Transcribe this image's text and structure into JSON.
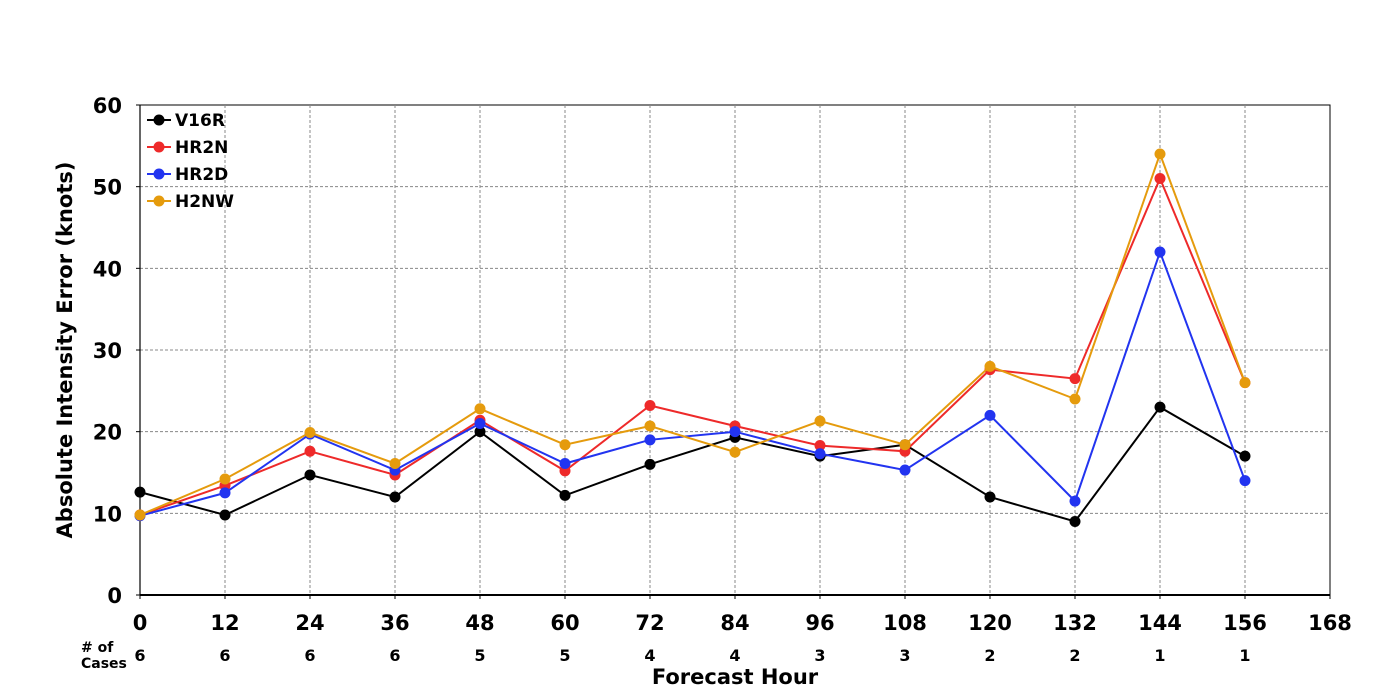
{
  "chart_data": {
    "type": "line",
    "xlabel": "Forecast Hour",
    "ylabel": "Absolute Intensity Error (knots)",
    "xlim": [
      0,
      168
    ],
    "ylim": [
      0,
      60
    ],
    "x_ticks": [
      0,
      12,
      24,
      36,
      48,
      60,
      72,
      84,
      96,
      108,
      120,
      132,
      144,
      156,
      168
    ],
    "y_ticks": [
      0,
      10,
      20,
      30,
      40,
      50,
      60
    ],
    "grid": true,
    "legend_position": "top-left",
    "cases_label_line1": "# of",
    "cases_label_line2": "Cases",
    "x": [
      0,
      12,
      24,
      36,
      48,
      60,
      72,
      84,
      96,
      108,
      120,
      132,
      144,
      156
    ],
    "cases": [
      6,
      6,
      6,
      6,
      5,
      5,
      4,
      4,
      3,
      3,
      2,
      2,
      1,
      1
    ],
    "series": [
      {
        "name": "V16R",
        "color": "#000000",
        "values": [
          12.6,
          9.8,
          14.7,
          12.0,
          20.0,
          12.2,
          16.0,
          19.3,
          17.0,
          18.4,
          12.0,
          9.0,
          23.0,
          17.0
        ]
      },
      {
        "name": "HR2N",
        "color": "#ee2a2a",
        "values": [
          9.8,
          13.4,
          17.6,
          14.7,
          21.4,
          15.2,
          23.2,
          20.7,
          18.3,
          17.6,
          27.6,
          26.5,
          51.0,
          26.0
        ]
      },
      {
        "name": "HR2D",
        "color": "#2234f0",
        "values": [
          9.7,
          12.5,
          19.7,
          15.3,
          21.0,
          16.1,
          19.0,
          20.0,
          17.3,
          15.3,
          22.0,
          11.5,
          42.0,
          14.0
        ]
      },
      {
        "name": "H2NW",
        "color": "#e59b0d",
        "values": [
          9.8,
          14.2,
          19.9,
          16.1,
          22.8,
          18.4,
          20.7,
          17.5,
          21.3,
          18.4,
          28.0,
          24.0,
          54.0,
          26.0
        ]
      }
    ]
  }
}
